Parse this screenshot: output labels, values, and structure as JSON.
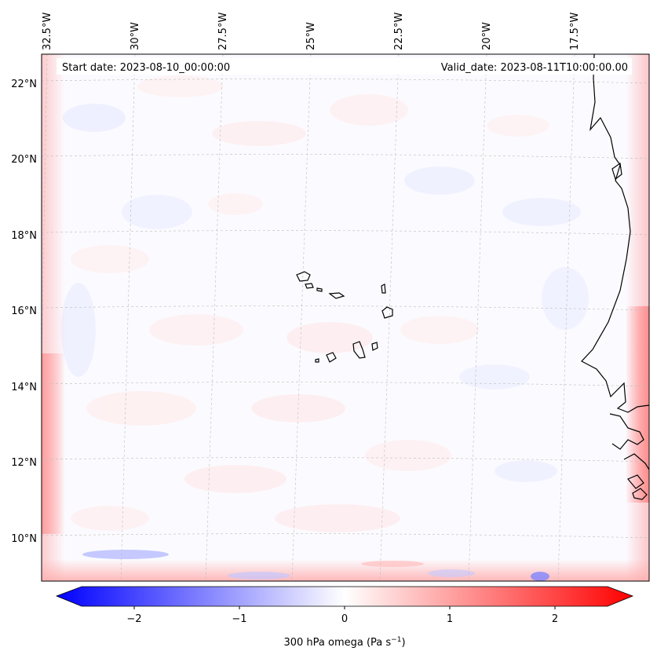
{
  "map": {
    "start_date_label": "Start date: 2023-08-10_00:00:00",
    "valid_date_label": "Valid_date: 2023-08-11T10:00:00.00",
    "lon_labels": [
      "32.5°W",
      "30°W",
      "27.5°W",
      "25°W",
      "22.5°W",
      "20°W",
      "17.5°W"
    ],
    "lat_labels": [
      "22°N",
      "20°N",
      "18°N",
      "16°N",
      "14°N",
      "12°N",
      "10°N"
    ],
    "colors": {
      "negative": "#0000ff",
      "neutral": "#ffffff",
      "positive": "#ff0000",
      "coastline": "#000000"
    }
  },
  "colorbar": {
    "ticks": [
      "−2",
      "−1",
      "0",
      "1",
      "2"
    ],
    "label": "300 hPa omega (Pa s",
    "label_sup": "−1",
    "label_close": ")"
  }
}
